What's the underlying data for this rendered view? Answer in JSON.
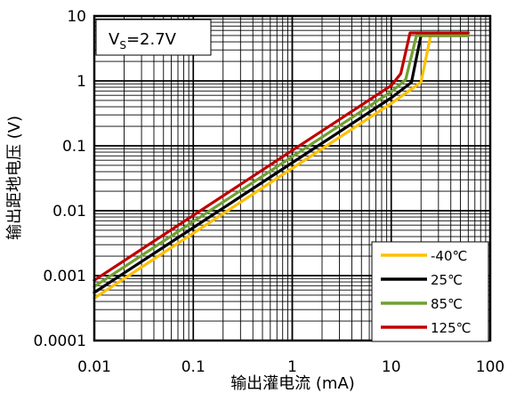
{
  "chart_data": {
    "type": "line",
    "title": "",
    "xlabel": "输出灌电流 (mA)",
    "ylabel": "输出距地电压 (V)",
    "x_scale": "log",
    "y_scale": "log",
    "xlim": [
      0.01,
      100
    ],
    "ylim": [
      0.0001,
      10
    ],
    "x_ticks": [
      "0.01",
      "0.1",
      "1",
      "10",
      "100"
    ],
    "y_ticks": [
      "0.0001",
      "0.001",
      "0.01",
      "0.1",
      "1",
      "10"
    ],
    "grid": true,
    "legend_position": "bottom-right",
    "annotation": {
      "base": "V",
      "sub": "S",
      "rest": "=2.7V"
    },
    "colors": {
      "-40": "#FFC000",
      "25": "#000000",
      "85": "#70A030",
      "125": "#C00000"
    },
    "series": [
      {
        "name": "-40℃",
        "color": "#FFC000",
        "points": [
          [
            0.01,
            0.00045
          ],
          [
            0.1,
            0.0045
          ],
          [
            1,
            0.045
          ],
          [
            10,
            0.45
          ],
          [
            20,
            0.95
          ],
          [
            25,
            5.0
          ],
          [
            60,
            5.0
          ]
        ]
      },
      {
        "name": "25℃",
        "color": "#000000",
        "points": [
          [
            0.01,
            0.00055
          ],
          [
            0.1,
            0.0055
          ],
          [
            1,
            0.055
          ],
          [
            10,
            0.55
          ],
          [
            16,
            0.95
          ],
          [
            20,
            5.0
          ],
          [
            60,
            5.0
          ]
        ]
      },
      {
        "name": "85℃",
        "color": "#70A030",
        "points": [
          [
            0.01,
            0.00068
          ],
          [
            0.1,
            0.0068
          ],
          [
            1,
            0.068
          ],
          [
            10,
            0.68
          ],
          [
            14,
            1.05
          ],
          [
            18,
            5.0
          ],
          [
            60,
            5.0
          ]
        ]
      },
      {
        "name": "125℃",
        "color": "#C00000",
        "points": [
          [
            0.01,
            0.00085
          ],
          [
            0.1,
            0.0085
          ],
          [
            1,
            0.085
          ],
          [
            10,
            0.85
          ],
          [
            12.5,
            1.3
          ],
          [
            15.5,
            5.5
          ],
          [
            60,
            5.5
          ]
        ]
      }
    ]
  }
}
